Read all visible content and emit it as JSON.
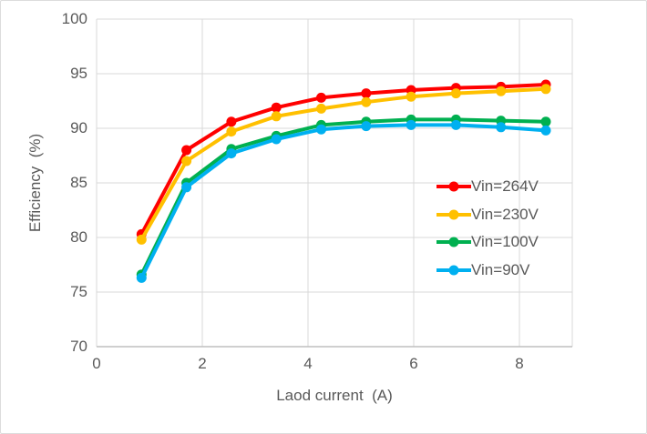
{
  "chart_data": {
    "type": "line",
    "title": "",
    "xlabel": "Laod current  (A)",
    "ylabel": "Efficiency  (%)",
    "xlim": [
      0,
      9
    ],
    "ylim": [
      70,
      100
    ],
    "xticks": [
      0,
      2,
      4,
      6,
      8
    ],
    "yticks": [
      70,
      75,
      80,
      85,
      90,
      95,
      100
    ],
    "grid": true,
    "legend_position": "inside-right",
    "x": [
      0.85,
      1.7,
      2.55,
      3.4,
      4.25,
      5.1,
      5.95,
      6.8,
      7.65,
      8.5
    ],
    "series": [
      {
        "name": "Vin=264V",
        "color": "#ff0000",
        "values": [
          80.3,
          88.0,
          90.6,
          91.9,
          92.8,
          93.2,
          93.5,
          93.7,
          93.8,
          94.0
        ]
      },
      {
        "name": "Vin=230V",
        "color": "#ffc000",
        "values": [
          79.8,
          87.0,
          89.7,
          91.1,
          91.8,
          92.4,
          92.9,
          93.2,
          93.4,
          93.6
        ]
      },
      {
        "name": "Vin=100V",
        "color": "#00b050",
        "values": [
          76.6,
          85.0,
          88.1,
          89.3,
          90.3,
          90.6,
          90.8,
          90.8,
          90.7,
          90.6
        ]
      },
      {
        "name": "Vin=90V",
        "color": "#00b0f0",
        "values": [
          76.3,
          84.6,
          87.7,
          89.0,
          89.9,
          90.2,
          90.3,
          90.3,
          90.1,
          89.8
        ]
      }
    ],
    "styles": {
      "grid_color": "#d9d9d9",
      "axis_line_color": "#bfbfbf",
      "axis_text_color": "#595959",
      "line_width": 4,
      "marker_radius": 5.5
    }
  }
}
